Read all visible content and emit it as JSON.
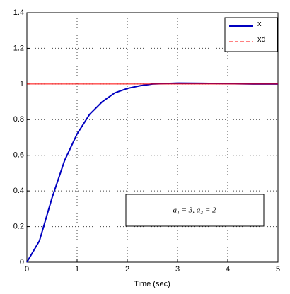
{
  "chart_data": {
    "type": "line",
    "xlabel": "Time (sec)",
    "annotation": "a₁ = 3, a₂ = 2",
    "x": [
      0,
      0.25,
      0.5,
      0.75,
      1,
      1.25,
      1.5,
      1.75,
      2,
      2.25,
      2.5,
      3,
      3.5,
      4,
      4.5,
      5
    ],
    "series": [
      {
        "name": "x",
        "color": "#0000c0",
        "values": [
          0,
          0.12,
          0.36,
          0.57,
          0.72,
          0.83,
          0.9,
          0.95,
          0.975,
          0.99,
          1.0,
          1.005,
          1.004,
          1.002,
          1.0,
          1.0
        ]
      },
      {
        "name": "xd",
        "color": "#ff0000",
        "dash": true,
        "values": [
          1,
          1,
          1,
          1,
          1,
          1,
          1,
          1,
          1,
          1,
          1,
          1,
          1,
          1,
          1,
          1
        ]
      }
    ],
    "xlim": [
      0,
      5
    ],
    "xticks": [
      0,
      1,
      2,
      3,
      4,
      5
    ],
    "ylim": [
      0,
      1.4
    ],
    "yticks": [
      0,
      0.2,
      0.4,
      0.6,
      0.8,
      1,
      1.2,
      1.4
    ],
    "grid": true,
    "legend": "upper right"
  }
}
